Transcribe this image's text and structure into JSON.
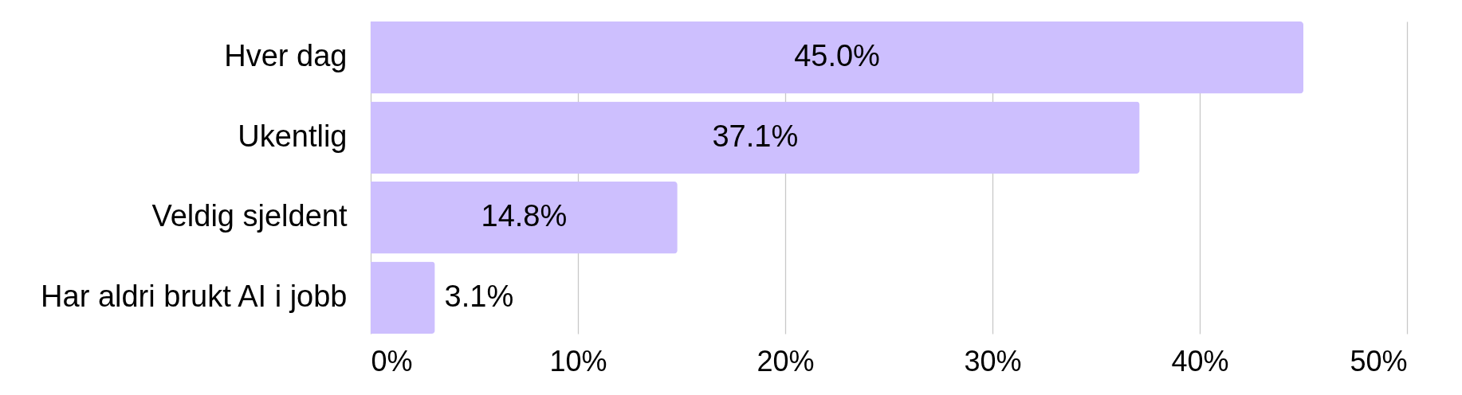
{
  "chart_data": {
    "type": "bar",
    "orientation": "horizontal",
    "categories": [
      "Hver dag",
      "Ukentlig",
      "Veldig sjeldent",
      "Har aldri brukt AI i jobb"
    ],
    "values": [
      45.0,
      37.1,
      14.8,
      3.1
    ],
    "color": "#cdbffe",
    "value_labels": [
      "45.0%",
      "37.1%",
      "14.8%",
      "3.1%"
    ],
    "xlim": [
      0,
      50
    ],
    "xticks": [
      {
        "value": 0,
        "label": "0%"
      },
      {
        "value": 10,
        "label": "10%"
      },
      {
        "value": 20,
        "label": "20%"
      },
      {
        "value": 30,
        "label": "30%"
      },
      {
        "value": 40,
        "label": "40%"
      },
      {
        "value": 50,
        "label": "50%"
      }
    ],
    "grid": "x"
  }
}
